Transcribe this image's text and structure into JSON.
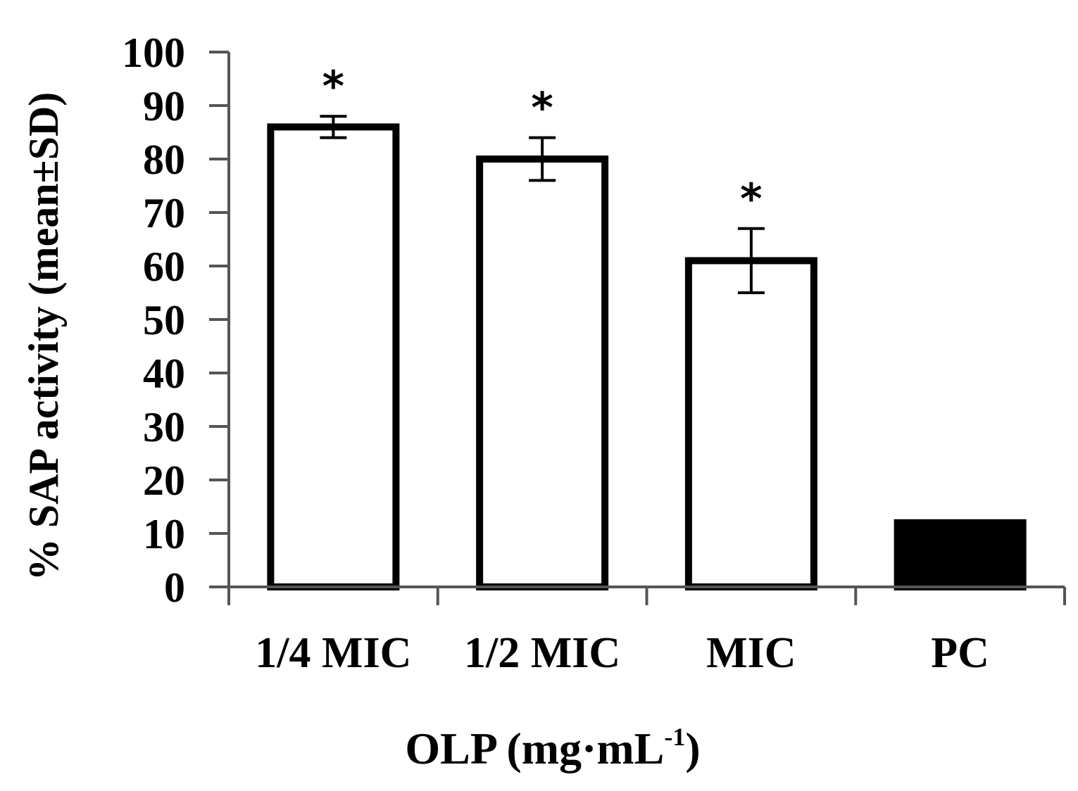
{
  "chart_data": {
    "type": "bar",
    "categories": [
      "1/4 MIC",
      "1/2 MIC",
      "MIC",
      "PC"
    ],
    "values": [
      86,
      80,
      61,
      12
    ],
    "errors": [
      2,
      4,
      6,
      0
    ],
    "significance": [
      "*",
      "*",
      "*",
      ""
    ],
    "fills": [
      "#ffffff",
      "#ffffff",
      "#ffffff",
      "#000000"
    ],
    "yticks": [
      0,
      10,
      20,
      30,
      40,
      50,
      60,
      70,
      80,
      90,
      100
    ],
    "ylim": [
      0,
      100
    ],
    "ylabel": "% SAP activity (mean±SD)",
    "xlabel": {
      "main": "OLP (mg·mL",
      "sup": "-1",
      "close": ")"
    },
    "title": ""
  }
}
